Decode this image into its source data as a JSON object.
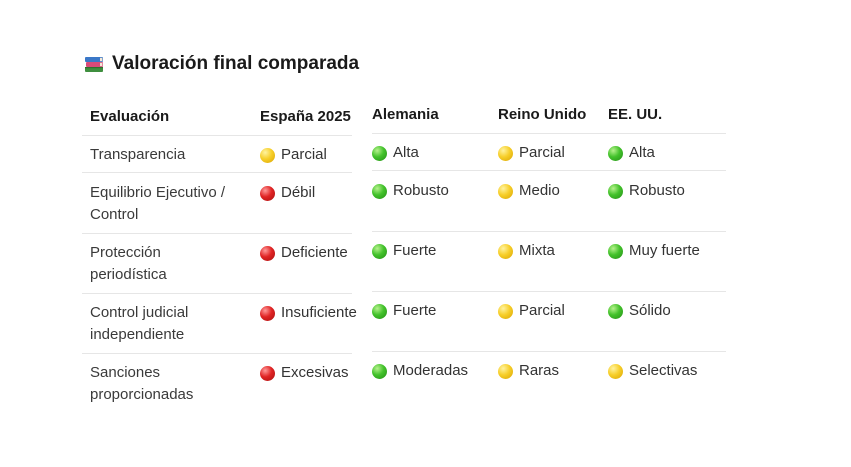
{
  "title": "Valoración final comparada",
  "title_icon": "books-icon",
  "headers": [
    "Evaluación",
    "España 2025",
    "Alemania",
    "Reino Unido",
    "EE. UU."
  ],
  "rows": [
    {
      "label": [
        "Transparencia"
      ],
      "cells": [
        {
          "status": "yellow",
          "text": "Parcial"
        },
        {
          "status": "green",
          "text": "Alta"
        },
        {
          "status": "yellow",
          "text": "Parcial"
        },
        {
          "status": "green",
          "text": "Alta"
        }
      ]
    },
    {
      "label": [
        "Equilibrio Ejecutivo /",
        "Control"
      ],
      "cells": [
        {
          "status": "red",
          "text": "Débil"
        },
        {
          "status": "green",
          "text": "Robusto"
        },
        {
          "status": "yellow",
          "text": "Medio"
        },
        {
          "status": "green",
          "text": "Robusto"
        }
      ]
    },
    {
      "label": [
        "Protección",
        "periodística"
      ],
      "cells": [
        {
          "status": "red",
          "text": "Deficiente"
        },
        {
          "status": "green",
          "text": "Fuerte"
        },
        {
          "status": "yellow",
          "text": "Mixta"
        },
        {
          "status": "green",
          "text": "Muy fuerte"
        }
      ]
    },
    {
      "label": [
        "Control judicial",
        "independiente"
      ],
      "cells": [
        {
          "status": "red",
          "text": "Insuficiente"
        },
        {
          "status": "green",
          "text": "Fuerte"
        },
        {
          "status": "yellow",
          "text": "Parcial"
        },
        {
          "status": "green",
          "text": "Sólido"
        }
      ]
    },
    {
      "label": [
        "Sanciones",
        "proporcionadas"
      ],
      "cells": [
        {
          "status": "red",
          "text": "Excesivas"
        },
        {
          "status": "green",
          "text": "Moderadas"
        },
        {
          "status": "yellow",
          "text": "Raras"
        },
        {
          "status": "yellow",
          "text": "Selectivas"
        }
      ]
    }
  ],
  "status_colors": {
    "green": "#43c22b",
    "yellow": "#f7cf2a",
    "red": "#e02424"
  }
}
